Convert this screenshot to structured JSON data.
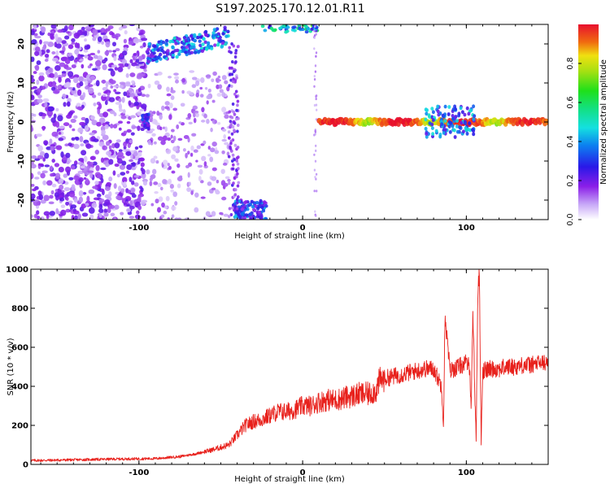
{
  "title": "S197.2025.170.12.01.R11",
  "colors": {
    "snr_line": "#e8211c",
    "spectro_low": "#e3d4fb",
    "spectro_mid": "#7a1fe0",
    "spectro_peak": "#d0103a"
  },
  "colorbar": {
    "label": "Normalized spectral amplitude",
    "ticks": [
      "0.0",
      "0.2",
      "0.4",
      "0.6",
      "0.8"
    ],
    "tick_values": [
      0.0,
      0.2,
      0.4,
      0.6,
      0.8
    ],
    "range": [
      0,
      1
    ]
  },
  "chart_data": [
    {
      "type": "heatmap",
      "title": "S197.2025.170.12.01.R11",
      "xlabel": "Height of straight line (km)",
      "ylabel": "Frequency (Hz)",
      "xlim": [
        -166,
        150
      ],
      "ylim": [
        -25,
        25
      ],
      "x_ticks": [
        -100,
        0,
        100
      ],
      "x_tick_labels": [
        "-100",
        "0",
        "100"
      ],
      "y_ticks": [
        -20,
        -10,
        0,
        10,
        20
      ],
      "y_tick_labels": [
        "-20",
        "-10",
        "0",
        "10",
        "20"
      ],
      "colormap": "white-purple-blue-cyan-green-yellow-red",
      "regions": [
        {
          "name": "scattered noise",
          "x_range": [
            -166,
            -97
          ],
          "freq_range": [
            -25,
            25
          ],
          "amplitude": 0.15
        },
        {
          "name": "upper band",
          "x_range": [
            -95,
            -45
          ],
          "freq_range": [
            15,
            22
          ],
          "amplitude": 0.4
        },
        {
          "name": "lower band",
          "x_range": [
            -40,
            -20
          ],
          "freq_range": [
            -25,
            -20
          ],
          "amplitude": 0.35
        },
        {
          "name": "zero-frequency trace",
          "x_range": [
            10,
            150
          ],
          "freq_range": [
            -1,
            1
          ],
          "amplitude": 1.0
        }
      ]
    },
    {
      "type": "line",
      "xlabel": "Height of straight line (km)",
      "ylabel": "SNR (10 * v/v)",
      "xlim": [
        -166,
        150
      ],
      "ylim": [
        0,
        1000
      ],
      "x_ticks": [
        -100,
        0,
        100
      ],
      "x_tick_labels": [
        "-100",
        "0",
        "100"
      ],
      "y_ticks": [
        0,
        200,
        400,
        600,
        800,
        1000
      ],
      "y_tick_labels": [
        "0",
        "200",
        "400",
        "600",
        "800",
        "1000"
      ],
      "series": [
        {
          "x": [
            -166,
            -150,
            -130,
            -110,
            -90,
            -75,
            -65,
            -55,
            -45,
            -40,
            -35,
            -30,
            -25,
            -20,
            -15,
            -10,
            -5,
            0,
            5,
            10,
            15,
            20,
            25,
            30,
            35,
            40,
            45,
            47,
            50,
            55,
            60,
            65,
            70,
            75,
            80,
            85,
            86,
            87,
            90,
            95,
            100,
            102,
            103,
            104,
            105,
            106,
            107,
            108,
            109,
            110,
            115,
            120,
            125,
            130,
            135,
            140,
            145,
            150
          ],
          "y": [
            20,
            22,
            25,
            28,
            30,
            40,
            55,
            75,
            100,
            150,
            200,
            220,
            230,
            250,
            270,
            270,
            280,
            300,
            300,
            320,
            330,
            330,
            340,
            350,
            360,
            360,
            380,
            430,
            440,
            450,
            460,
            470,
            480,
            490,
            490,
            400,
            200,
            760,
            480,
            500,
            520,
            500,
            300,
            800,
            420,
            130,
            890,
            980,
            120,
            480,
            490,
            490,
            500,
            500,
            510,
            510,
            520,
            520
          ]
        }
      ]
    }
  ]
}
